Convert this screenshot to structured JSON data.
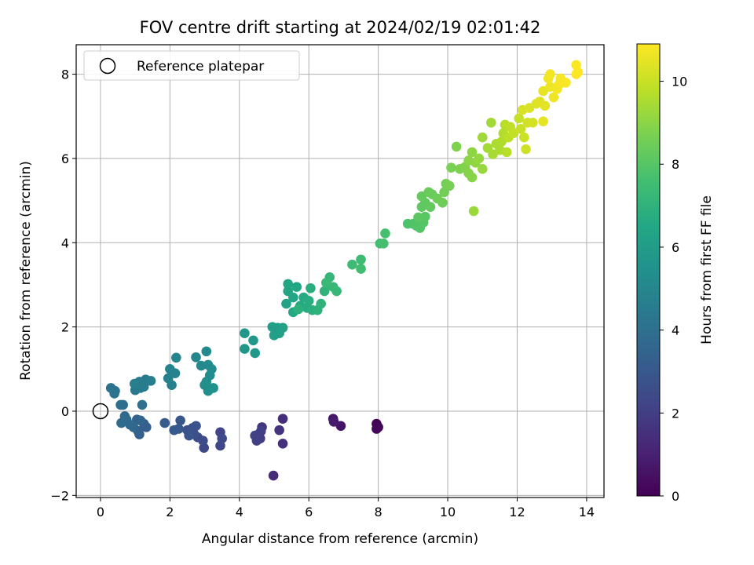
{
  "chart_data": {
    "type": "scatter",
    "title": "FOV centre drift starting at 2024/02/19 02:01:42",
    "xlabel": "Angular distance from reference (arcmin)",
    "ylabel": "Rotation from reference (arcmin)",
    "xlim": [
      -0.7,
      14.5
    ],
    "ylim": [
      -2.05,
      8.7
    ],
    "xticks": [
      0,
      2,
      4,
      6,
      8,
      10,
      12,
      14
    ],
    "yticks": [
      -2,
      0,
      2,
      4,
      6,
      8
    ],
    "grid": true,
    "legend": {
      "label": "Reference platepar",
      "placement": "top-left"
    },
    "reference_point": {
      "x": 0,
      "y": 0
    },
    "colorbar": {
      "label": "Hours from first FF file",
      "colormap": "viridis",
      "range": [
        0,
        10.9
      ],
      "ticks": [
        0,
        2,
        4,
        6,
        8,
        10
      ]
    },
    "series": [
      {
        "color_by": "hours",
        "points": [
          [
            7.95,
            -0.3,
            0.1
          ],
          [
            7.95,
            -0.42,
            0.15
          ],
          [
            8.0,
            -0.38,
            0.2
          ],
          [
            6.92,
            -0.35,
            0.6
          ],
          [
            6.7,
            -0.18,
            0.7
          ],
          [
            6.72,
            -0.25,
            0.8
          ],
          [
            4.98,
            -1.53,
            1.3
          ],
          [
            5.25,
            -0.18,
            1.4
          ],
          [
            5.25,
            -0.77,
            1.5
          ],
          [
            5.15,
            -0.45,
            1.6
          ],
          [
            4.65,
            -0.38,
            1.7
          ],
          [
            4.55,
            -0.55,
            1.8
          ],
          [
            4.6,
            -0.65,
            1.9
          ],
          [
            4.5,
            -0.7,
            2.0
          ],
          [
            4.62,
            -0.48,
            2.05
          ],
          [
            4.45,
            -0.58,
            2.1
          ],
          [
            3.45,
            -0.5,
            2.2
          ],
          [
            3.45,
            -0.82,
            2.3
          ],
          [
            3.5,
            -0.65,
            2.35
          ],
          [
            2.98,
            -0.87,
            2.4
          ],
          [
            2.8,
            -0.62,
            2.5
          ],
          [
            2.95,
            -0.7,
            2.55
          ],
          [
            2.65,
            -0.4,
            2.6
          ],
          [
            2.7,
            -0.55,
            2.65
          ],
          [
            2.6,
            -0.52,
            2.7
          ],
          [
            2.5,
            -0.45,
            2.75
          ],
          [
            2.75,
            -0.35,
            2.8
          ],
          [
            2.55,
            -0.58,
            2.85
          ],
          [
            2.3,
            -0.22,
            2.9
          ],
          [
            2.25,
            -0.42,
            3.0
          ],
          [
            2.12,
            -0.45,
            3.05
          ],
          [
            1.85,
            -0.28,
            3.1
          ],
          [
            1.32,
            -0.38,
            3.2
          ],
          [
            1.25,
            -0.3,
            3.3
          ],
          [
            1.08,
            -0.47,
            3.35
          ],
          [
            1.12,
            -0.55,
            3.4
          ],
          [
            1.05,
            -0.2,
            3.45
          ],
          [
            1.15,
            -0.22,
            3.5
          ],
          [
            0.95,
            -0.38,
            3.6
          ],
          [
            0.85,
            -0.32,
            3.65
          ],
          [
            0.7,
            -0.12,
            3.7
          ],
          [
            0.75,
            -0.2,
            3.75
          ],
          [
            0.6,
            -0.28,
            3.8
          ],
          [
            0.65,
            0.15,
            3.9
          ],
          [
            0.58,
            0.15,
            3.95
          ],
          [
            1.2,
            0.15,
            4.0
          ],
          [
            0.4,
            0.42,
            4.1
          ],
          [
            0.3,
            0.55,
            4.15
          ],
          [
            0.42,
            0.48,
            4.2
          ],
          [
            1.0,
            0.5,
            4.3
          ],
          [
            1.05,
            0.62,
            4.35
          ],
          [
            1.15,
            0.55,
            4.4
          ],
          [
            1.12,
            0.7,
            4.45
          ],
          [
            1.25,
            0.58,
            4.5
          ],
          [
            1.3,
            0.75,
            4.55
          ],
          [
            1.45,
            0.72,
            4.6
          ],
          [
            0.98,
            0.65,
            4.65
          ],
          [
            2.05,
            0.62,
            4.7
          ],
          [
            1.95,
            0.78,
            4.75
          ],
          [
            2.15,
            0.9,
            4.8
          ],
          [
            2.0,
            1.0,
            4.85
          ],
          [
            2.18,
            1.27,
            4.9
          ],
          [
            2.75,
            1.28,
            5.0
          ],
          [
            2.9,
            1.08,
            5.05
          ],
          [
            3.05,
            1.42,
            5.1
          ],
          [
            3.1,
            1.1,
            5.15
          ],
          [
            3.2,
            1.0,
            5.2
          ],
          [
            3.15,
            0.85,
            5.25
          ],
          [
            3.05,
            0.7,
            5.3
          ],
          [
            3.0,
            0.62,
            5.35
          ],
          [
            3.1,
            0.48,
            5.4
          ],
          [
            3.25,
            0.55,
            5.45
          ],
          [
            4.15,
            1.85,
            5.7
          ],
          [
            4.15,
            1.48,
            5.75
          ],
          [
            4.4,
            1.68,
            5.8
          ],
          [
            4.45,
            1.38,
            5.85
          ],
          [
            4.95,
            2.0,
            6.0
          ],
          [
            5.1,
            1.98,
            6.05
          ],
          [
            5.0,
            1.8,
            6.1
          ],
          [
            5.15,
            1.85,
            6.15
          ],
          [
            5.25,
            1.98,
            6.2
          ],
          [
            5.35,
            2.55,
            6.3
          ],
          [
            5.4,
            2.85,
            6.35
          ],
          [
            5.4,
            3.02,
            6.4
          ],
          [
            5.55,
            2.7,
            6.45
          ],
          [
            5.65,
            2.95,
            6.5
          ],
          [
            5.55,
            2.35,
            6.55
          ],
          [
            5.75,
            2.5,
            6.6
          ],
          [
            5.85,
            2.7,
            6.65
          ],
          [
            5.95,
            2.45,
            6.7
          ],
          [
            6.0,
            2.62,
            6.75
          ],
          [
            6.05,
            2.92,
            6.8
          ],
          [
            6.1,
            2.4,
            6.85
          ],
          [
            5.7,
            2.42,
            6.9
          ],
          [
            6.25,
            2.4,
            6.95
          ],
          [
            6.35,
            2.55,
            7.0
          ],
          [
            6.45,
            2.85,
            7.05
          ],
          [
            6.55,
            2.98,
            7.1
          ],
          [
            6.6,
            3.18,
            7.15
          ],
          [
            6.7,
            2.95,
            7.2
          ],
          [
            6.8,
            2.85,
            7.25
          ],
          [
            6.5,
            3.05,
            7.3
          ],
          [
            7.25,
            3.48,
            7.4
          ],
          [
            7.5,
            3.6,
            7.45
          ],
          [
            7.5,
            3.38,
            7.5
          ],
          [
            8.05,
            3.98,
            7.6
          ],
          [
            8.15,
            3.98,
            7.65
          ],
          [
            8.2,
            4.22,
            7.7
          ],
          [
            8.85,
            4.45,
            7.8
          ],
          [
            9.0,
            4.45,
            7.85
          ],
          [
            9.1,
            4.4,
            7.9
          ],
          [
            9.2,
            4.35,
            7.95
          ],
          [
            9.3,
            4.48,
            8.0
          ],
          [
            9.35,
            4.62,
            8.05
          ],
          [
            9.15,
            4.6,
            8.1
          ],
          [
            9.25,
            4.85,
            8.15
          ],
          [
            9.35,
            4.95,
            8.2
          ],
          [
            9.5,
            4.85,
            8.25
          ],
          [
            9.25,
            5.1,
            8.3
          ],
          [
            9.45,
            5.2,
            8.35
          ],
          [
            9.55,
            5.15,
            8.4
          ],
          [
            9.7,
            5.05,
            8.45
          ],
          [
            9.85,
            4.95,
            8.5
          ],
          [
            9.9,
            5.2,
            8.55
          ],
          [
            9.95,
            5.4,
            8.6
          ],
          [
            10.05,
            5.35,
            8.65
          ],
          [
            10.1,
            5.78,
            8.7
          ],
          [
            10.35,
            5.75,
            8.75
          ],
          [
            10.25,
            6.28,
            8.8
          ],
          [
            10.5,
            5.8,
            8.85
          ],
          [
            10.6,
            5.65,
            8.9
          ],
          [
            10.7,
            5.55,
            8.95
          ],
          [
            10.6,
            5.95,
            9.0
          ],
          [
            10.7,
            6.15,
            9.05
          ],
          [
            10.8,
            5.9,
            9.1
          ],
          [
            10.9,
            6.0,
            9.15
          ],
          [
            11.0,
            5.75,
            9.2
          ],
          [
            10.75,
            4.75,
            9.25
          ],
          [
            11.0,
            6.5,
            9.3
          ],
          [
            11.25,
            6.85,
            9.35
          ],
          [
            11.15,
            6.25,
            9.4
          ],
          [
            11.3,
            6.1,
            9.45
          ],
          [
            11.4,
            6.35,
            9.5
          ],
          [
            11.5,
            6.2,
            9.55
          ],
          [
            11.55,
            6.4,
            9.6
          ],
          [
            11.6,
            6.6,
            9.65
          ],
          [
            11.65,
            6.8,
            9.7
          ],
          [
            11.7,
            6.15,
            9.75
          ],
          [
            11.75,
            6.5,
            9.8
          ],
          [
            11.8,
            6.75,
            9.85
          ],
          [
            11.9,
            6.6,
            9.9
          ],
          [
            12.05,
            6.95,
            9.95
          ],
          [
            12.1,
            6.7,
            10.0
          ],
          [
            12.2,
            6.5,
            10.05
          ],
          [
            12.25,
            6.22,
            10.1
          ],
          [
            12.3,
            6.85,
            10.15
          ],
          [
            12.45,
            6.85,
            10.2
          ],
          [
            12.15,
            7.15,
            10.25
          ],
          [
            12.35,
            7.2,
            10.3
          ],
          [
            12.55,
            7.3,
            10.35
          ],
          [
            12.65,
            7.35,
            10.4
          ],
          [
            12.8,
            7.25,
            10.45
          ],
          [
            12.75,
            6.88,
            10.5
          ],
          [
            12.75,
            7.6,
            10.55
          ],
          [
            12.95,
            7.7,
            10.6
          ],
          [
            13.05,
            7.45,
            10.65
          ],
          [
            12.9,
            7.9,
            10.7
          ],
          [
            12.95,
            8.0,
            10.72
          ],
          [
            13.15,
            7.65,
            10.75
          ],
          [
            13.2,
            7.75,
            10.77
          ],
          [
            13.25,
            7.9,
            10.8
          ],
          [
            13.4,
            7.8,
            10.83
          ],
          [
            13.7,
            8.0,
            10.86
          ],
          [
            13.7,
            8.22,
            10.88
          ],
          [
            13.75,
            8.05,
            10.9
          ]
        ]
      }
    ]
  }
}
